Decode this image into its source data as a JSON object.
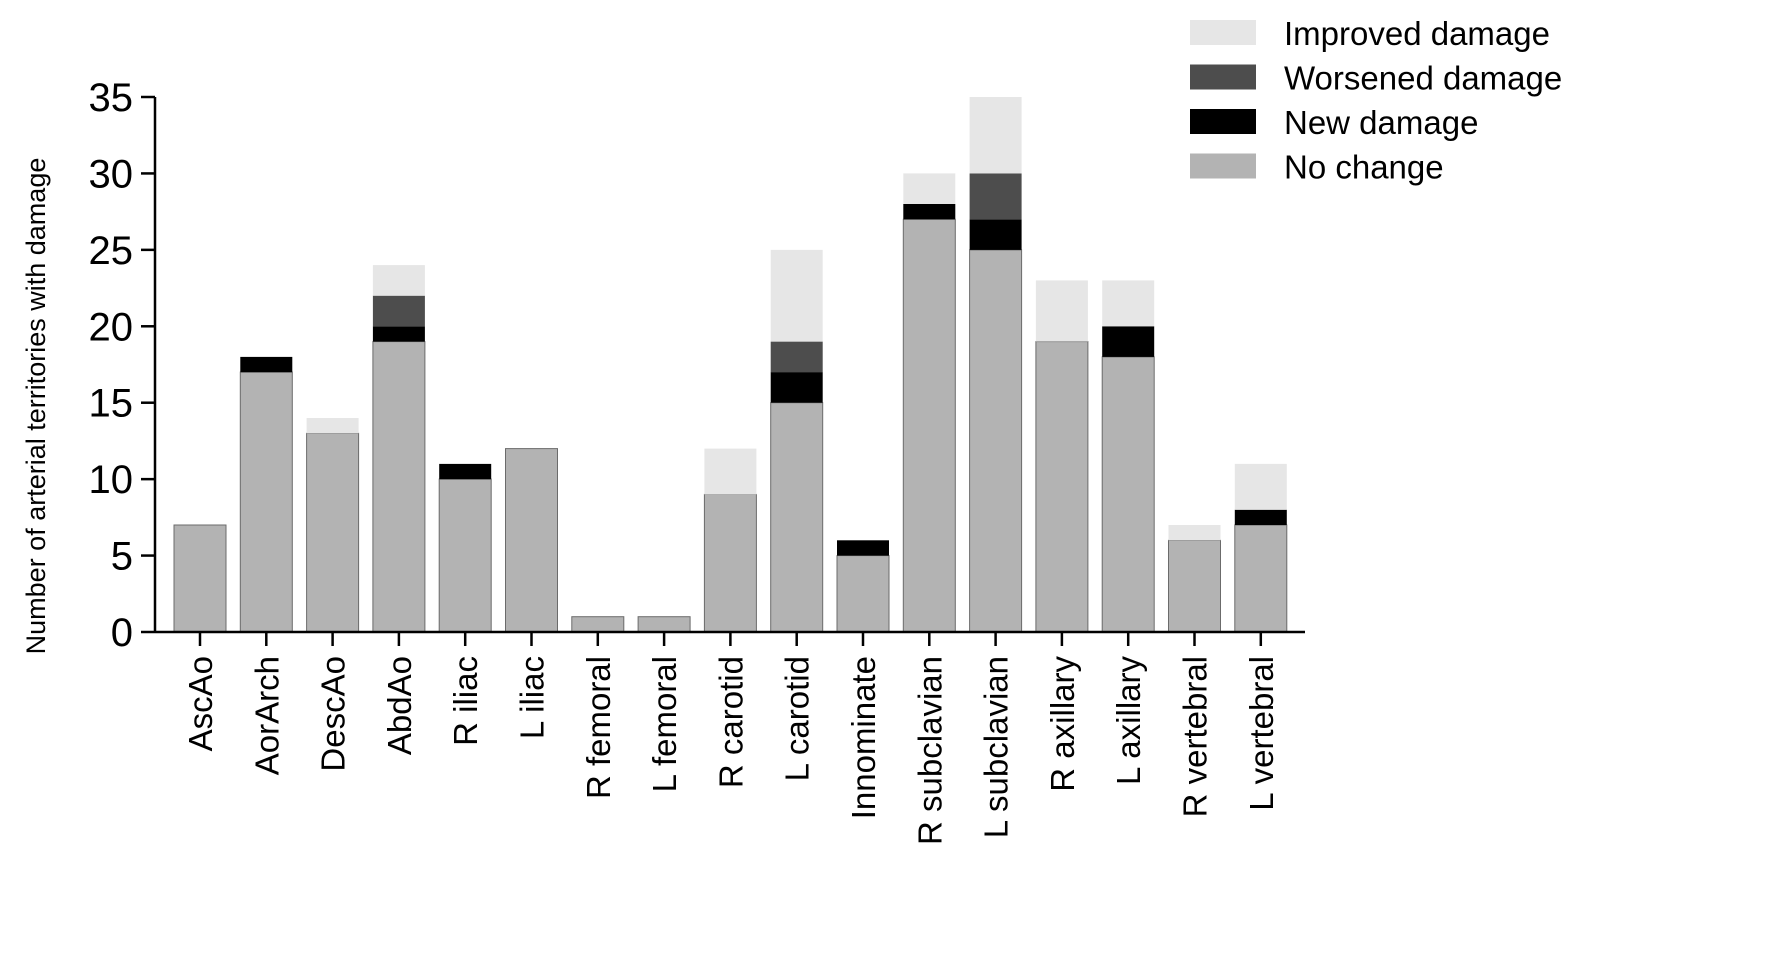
{
  "chart_data": {
    "type": "bar",
    "stacked": true,
    "title": "",
    "xlabel": "",
    "ylabel": "Number of arterial territories with damage",
    "ylim": [
      0,
      35
    ],
    "yticks": [
      0,
      5,
      10,
      15,
      20,
      25,
      30,
      35
    ],
    "grid": false,
    "legend_position": "top-right",
    "categories": [
      "AscAo",
      "AorArch",
      "DescAo",
      "AbdAo",
      "R iliac",
      "L iliac",
      "R femoral",
      "L femoral",
      "R carotid",
      "L carotid",
      "Innominate",
      "R subclavian",
      "L subclavian",
      "R axillary",
      "L axillary",
      "R vertebral",
      "L vertebral"
    ],
    "series": [
      {
        "name": "No change",
        "color": "#b3b3b3",
        "values": [
          7,
          17,
          13,
          19,
          10,
          12,
          1,
          1,
          9,
          15,
          5,
          27,
          25,
          19,
          18,
          6,
          7
        ]
      },
      {
        "name": "New damage",
        "color": "#000000",
        "values": [
          0,
          1,
          0,
          1,
          1,
          0,
          0,
          0,
          0,
          2,
          1,
          1,
          2,
          0,
          2,
          0,
          1
        ]
      },
      {
        "name": "Worsened damage",
        "color": "#4d4d4d",
        "values": [
          0,
          0,
          0,
          2,
          0,
          0,
          0,
          0,
          0,
          2,
          0,
          0,
          3,
          0,
          0,
          0,
          0
        ]
      },
      {
        "name": "Improved damage",
        "color": "#e6e6e6",
        "values": [
          0,
          0,
          1,
          2,
          0,
          0,
          0,
          0,
          3,
          6,
          0,
          2,
          5,
          4,
          3,
          1,
          3
        ]
      }
    ],
    "legend_order": [
      "Improved damage",
      "Worsened damage",
      "New damage",
      "No change"
    ]
  }
}
